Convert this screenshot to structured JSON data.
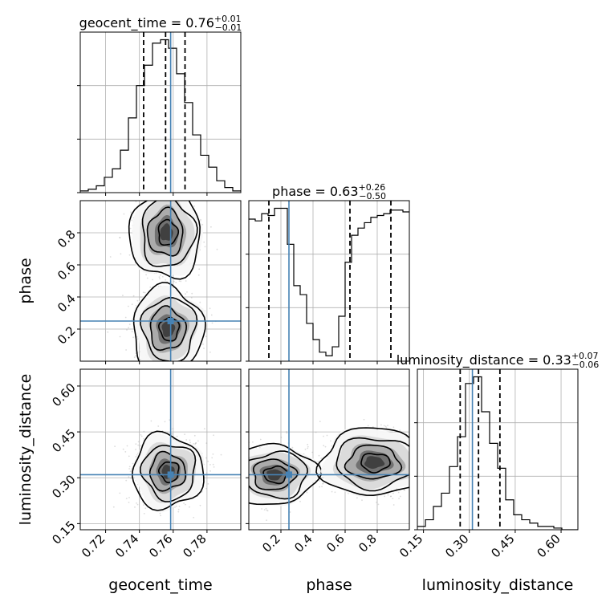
{
  "chart_data": {
    "type": "corner",
    "truth_color": "#4682b4",
    "parameters": [
      {
        "key": "geocent_time",
        "label": "geocent_time",
        "range": [
          0.705,
          0.8
        ],
        "ticks": [
          0.72,
          0.74,
          0.76,
          0.78
        ],
        "tick_labels": [
          "0.72",
          "0.74",
          "0.76",
          "0.78"
        ],
        "truth": 0.7585,
        "quantiles": [
          0.7425,
          0.7555,
          0.767
        ]
      },
      {
        "key": "phase",
        "label": "phase",
        "range": [
          0.0,
          1.0
        ],
        "ticks": [
          0.2,
          0.4,
          0.6,
          0.8
        ],
        "tick_labels": [
          "0.2",
          "0.4",
          "0.6",
          "0.8"
        ],
        "truth": 0.25,
        "quantiles": [
          0.125,
          0.63,
          0.885
        ]
      },
      {
        "key": "luminosity_distance",
        "label": "luminosity_distance",
        "range": [
          0.13,
          0.655
        ],
        "ticks": [
          0.15,
          0.3,
          0.45,
          0.6
        ],
        "tick_labels": [
          "0.15",
          "0.30",
          "0.45",
          "0.60"
        ],
        "truth": 0.31,
        "quantiles": [
          0.27,
          0.33,
          0.4
        ]
      }
    ],
    "titles": [
      {
        "name": "geocent_time",
        "median": "0.76",
        "plus": "+0.01",
        "minus": "−0.01"
      },
      {
        "name": "phase",
        "median": "0.63",
        "plus": "+0.26",
        "minus": "−0.50"
      },
      {
        "name": "luminosity_distance",
        "median": "0.33",
        "plus": "+0.07",
        "minus": "−0.06"
      }
    ],
    "histograms": {
      "geocent_time": {
        "edges_start": 0.705,
        "bin_width": 0.00475,
        "counts": [
          1,
          2,
          4,
          9,
          14,
          25,
          44,
          63,
          75,
          88,
          90,
          85,
          70,
          53,
          34,
          22,
          15,
          7,
          3,
          1
        ]
      },
      "phase": {
        "edges_start": 0.0,
        "bin_width": 0.04,
        "counts": [
          79,
          78,
          82,
          81,
          85,
          85,
          65,
          42,
          37,
          21,
          12,
          5,
          3,
          8,
          25,
          55,
          70,
          74,
          77,
          80,
          81,
          82,
          84,
          84,
          83
        ]
      },
      "luminosity_distance": {
        "edges_start": 0.13,
        "bin_width": 0.02625,
        "counts": [
          2,
          6,
          14,
          22,
          38,
          56,
          88,
          92,
          71,
          52,
          37,
          18,
          9,
          6,
          4,
          2,
          2,
          1,
          0,
          0
        ]
      }
    },
    "grid": true
  }
}
